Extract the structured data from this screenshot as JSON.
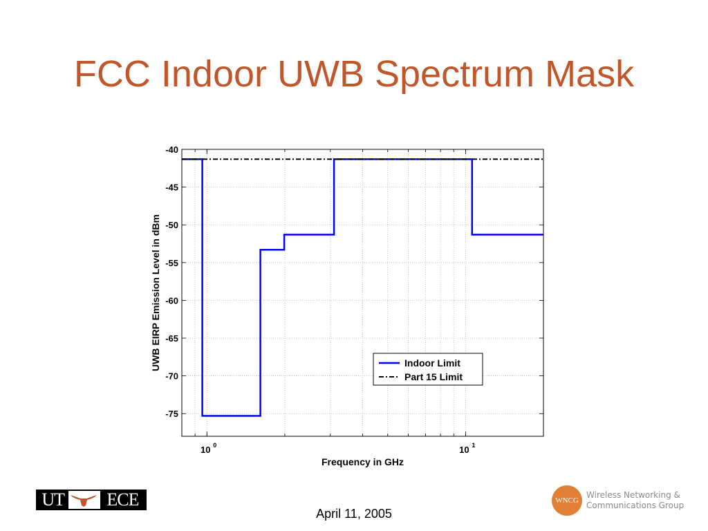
{
  "slide": {
    "title": "FCC Indoor UWB Spectrum Mask",
    "date": "April 11, 2005",
    "logo_left": {
      "ut": "UT",
      "ece": "ECE"
    },
    "logo_right": {
      "badge": "WNCG",
      "line1": "Wireless Networking &",
      "line2": "Communications Group"
    }
  },
  "colors": {
    "title": "#c0562a",
    "indoor": "#0000ff",
    "part15": "#000000",
    "wncg": "#e07f35"
  },
  "chart_data": {
    "type": "line",
    "xscale": "log",
    "xlim": [
      0.8,
      20
    ],
    "ylim": [
      -78,
      -40
    ],
    "xlabel": "Frequency in GHz",
    "ylabel": "UWB EIRP Emission Level in dBm",
    "yticks": [
      -40,
      -45,
      -50,
      -55,
      -60,
      -65,
      -70,
      -75
    ],
    "ytick_labels": [
      "-40",
      "-45",
      "-50",
      "-55",
      "-60",
      "-65",
      "-70",
      "-75"
    ],
    "xticks": [
      1,
      10
    ],
    "xtick_labels": [
      {
        "base": "10",
        "exp": "0"
      },
      {
        "base": "10",
        "exp": "1"
      }
    ],
    "grid": true,
    "legend_position": "lower-right",
    "series": [
      {
        "name": "Indoor Limit",
        "style": "solid",
        "x": [
          0.8,
          0.96,
          0.96,
          1.61,
          1.61,
          1.99,
          1.99,
          3.1,
          3.1,
          10.6,
          10.6,
          20
        ],
        "y": [
          -41.3,
          -41.3,
          -75.3,
          -75.3,
          -53.3,
          -53.3,
          -51.3,
          -51.3,
          -41.3,
          -41.3,
          -51.3,
          -51.3
        ]
      },
      {
        "name": "Part 15 Limit",
        "style": "dashdot",
        "x": [
          0.8,
          20
        ],
        "y": [
          -41.3,
          -41.3
        ]
      }
    ]
  }
}
